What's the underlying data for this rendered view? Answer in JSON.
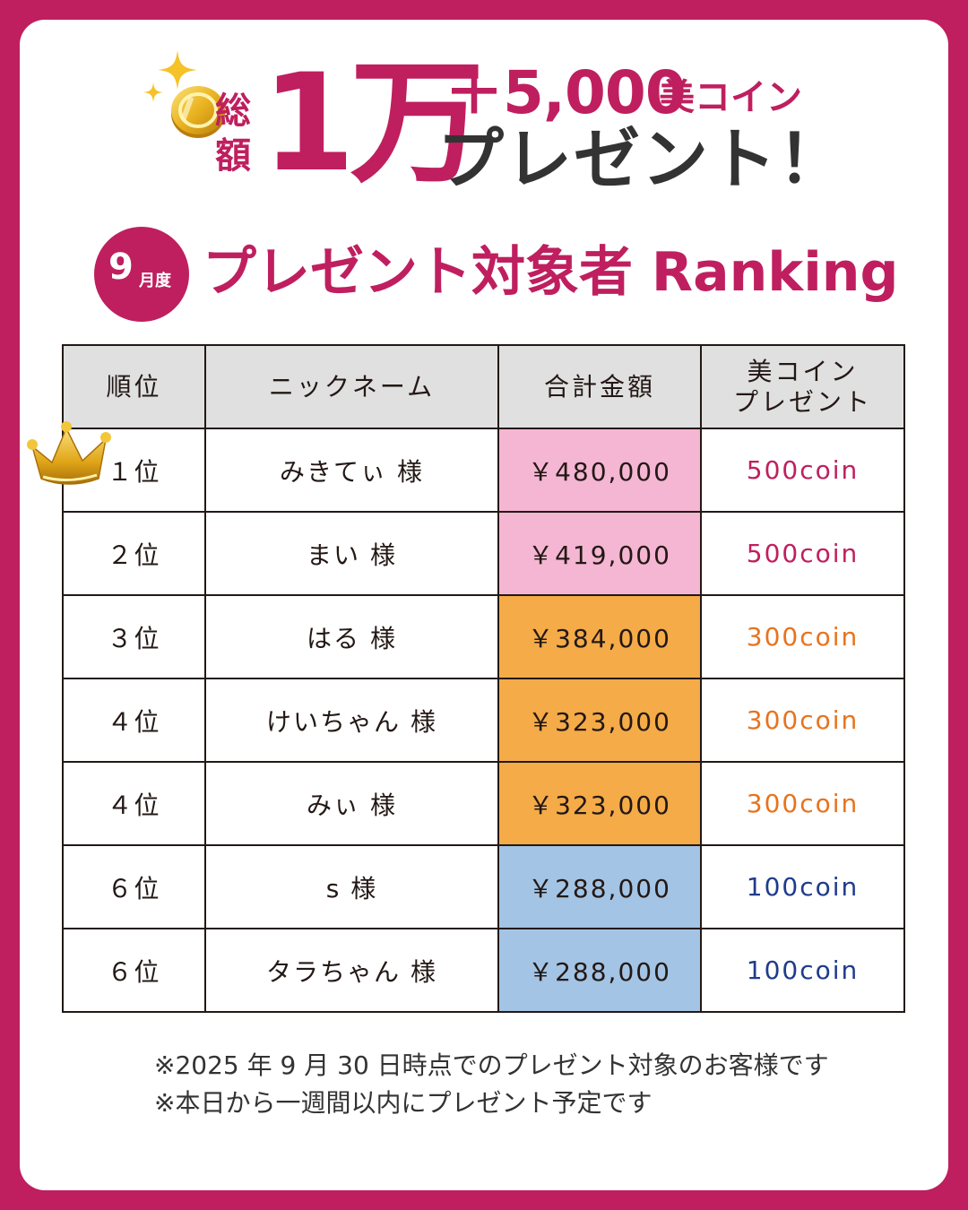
{
  "header": {
    "total_top": "総",
    "total_bottom": "額",
    "big_amount": "1万",
    "plus_amount": "＋5,000",
    "coin_unit": "美コイン",
    "present": "プレゼント！"
  },
  "subheader": {
    "month_num": "9",
    "month_unit": "月度",
    "title": "プレゼント対象者 Ranking"
  },
  "table": {
    "headers": [
      "順位",
      "ニックネーム",
      "合計金額",
      "美コイン\nプレゼント"
    ],
    "rows": [
      {
        "rank": "１位",
        "name": "みきてぃ 様",
        "amount": "￥480,000",
        "coin": "500coin",
        "amount_bg": "#f4b6d2",
        "coin_color": "#bf1f5f"
      },
      {
        "rank": "２位",
        "name": "まい 様",
        "amount": "￥419,000",
        "coin": "500coin",
        "amount_bg": "#f4b6d2",
        "coin_color": "#bf1f5f"
      },
      {
        "rank": "３位",
        "name": "はる 様",
        "amount": "￥384,000",
        "coin": "300coin",
        "amount_bg": "#f4ab48",
        "coin_color": "#e8731e"
      },
      {
        "rank": "４位",
        "name": "けいちゃん 様",
        "amount": "￥323,000",
        "coin": "300coin",
        "amount_bg": "#f4ab48",
        "coin_color": "#e8731e"
      },
      {
        "rank": "４位",
        "name": "みぃ 様",
        "amount": "￥323,000",
        "coin": "300coin",
        "amount_bg": "#f4ab48",
        "coin_color": "#e8731e"
      },
      {
        "rank": "６位",
        "name": "s 様",
        "amount": "￥288,000",
        "coin": "100coin",
        "amount_bg": "#a3c4e4",
        "coin_color": "#1f3b8c"
      },
      {
        "rank": "６位",
        "name": "タラちゃん 様",
        "amount": "￥288,000",
        "coin": "100coin",
        "amount_bg": "#a3c4e4",
        "coin_color": "#1f3b8c"
      }
    ]
  },
  "notes": [
    "※2025 年 9 月 30 日時点でのプレゼント対象のお客様です",
    "※本日から一週間以内にプレゼント予定です"
  ],
  "colors": {
    "brand": "#bf1f5f",
    "header_bg": "#e0e0e0"
  },
  "icons": [
    "sparkle-icon",
    "coin-icon",
    "crown-icon"
  ]
}
